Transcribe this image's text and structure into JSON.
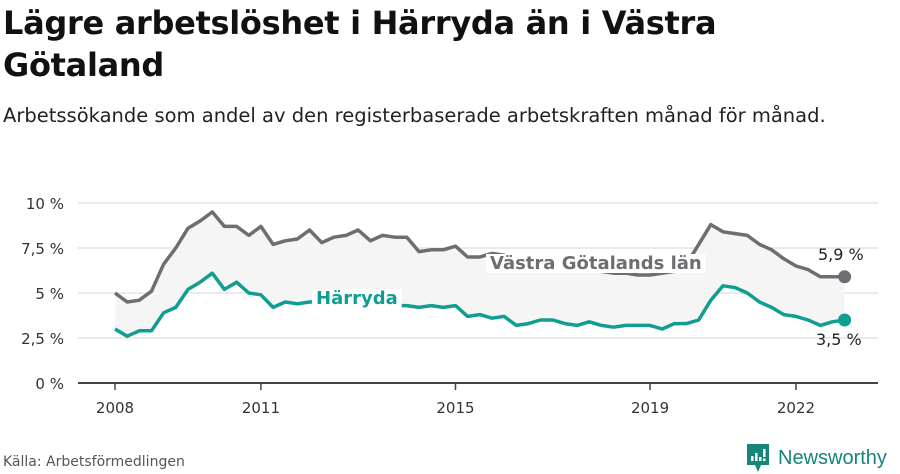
{
  "header": {
    "title": "Lägre arbetslöshet i Härryda än i Västra Götaland",
    "subtitle": "Arbetssökande som andel av den registerbaserade arbetskraften månad för månad."
  },
  "footer": {
    "source": "Källa: Arbetsförmedlingen",
    "brand": "Newsworthy"
  },
  "colors": {
    "vastra_gotaland": "#6e6d72",
    "harryda": "#0f9e91",
    "band": "#f5f5f5",
    "grid": "#e3e3e3",
    "axis": "#444444"
  },
  "chart_data": {
    "type": "line",
    "title": "Lägre arbetslöshet i Härryda än i Västra Götaland",
    "subtitle": "Arbetssökande som andel av den registerbaserade arbetskraften månad för månad.",
    "xlabel": "",
    "ylabel": "",
    "ylim": [
      0,
      10
    ],
    "yticks": [
      "0 %",
      "2,5 %",
      "5 %",
      "7,5 %",
      "10 %"
    ],
    "xticks": [
      "2008",
      "2011",
      "2015",
      "2019",
      "2022"
    ],
    "grid": true,
    "shaded_band_between_series": true,
    "x": [
      2008.0,
      2008.25,
      2008.5,
      2008.75,
      2009.0,
      2009.25,
      2009.5,
      2009.75,
      2010.0,
      2010.25,
      2010.5,
      2010.75,
      2011.0,
      2011.25,
      2011.5,
      2011.75,
      2012.0,
      2012.25,
      2012.5,
      2012.75,
      2013.0,
      2013.25,
      2013.5,
      2013.75,
      2014.0,
      2014.25,
      2014.5,
      2014.75,
      2015.0,
      2015.25,
      2015.5,
      2015.75,
      2016.0,
      2016.25,
      2016.5,
      2016.75,
      2017.0,
      2017.25,
      2017.5,
      2017.75,
      2018.0,
      2018.25,
      2018.5,
      2018.75,
      2019.0,
      2019.25,
      2019.5,
      2019.75,
      2020.0,
      2020.25,
      2020.5,
      2020.75,
      2021.0,
      2021.25,
      2021.5,
      2021.75,
      2022.0,
      2022.25,
      2022.5,
      2022.75,
      2023.0
    ],
    "series": [
      {
        "name": "Västra Götalands län",
        "end_label": "5,9 %",
        "values": [
          5.0,
          4.5,
          4.6,
          5.1,
          6.6,
          7.5,
          8.6,
          9.0,
          9.5,
          8.7,
          8.7,
          8.2,
          8.7,
          7.7,
          7.9,
          8.0,
          8.5,
          7.8,
          8.1,
          8.2,
          8.5,
          7.9,
          8.2,
          8.1,
          8.1,
          7.3,
          7.4,
          7.4,
          7.6,
          7.0,
          7.0,
          7.2,
          7.1,
          6.9,
          6.8,
          6.7,
          6.6,
          6.5,
          6.4,
          6.3,
          6.2,
          6.1,
          6.1,
          6.0,
          6.0,
          6.1,
          6.2,
          6.6,
          7.7,
          8.8,
          8.4,
          8.3,
          8.2,
          7.7,
          7.4,
          6.9,
          6.5,
          6.3,
          5.9,
          5.9,
          5.9
        ]
      },
      {
        "name": "Härryda",
        "end_label": "3,5 %",
        "values": [
          3.0,
          2.6,
          2.9,
          2.9,
          3.9,
          4.2,
          5.2,
          5.6,
          6.1,
          5.2,
          5.6,
          5.0,
          4.9,
          4.2,
          4.5,
          4.4,
          4.5,
          4.5,
          4.5,
          4.5,
          4.7,
          4.4,
          4.6,
          4.3,
          4.3,
          4.2,
          4.3,
          4.2,
          4.3,
          3.7,
          3.8,
          3.6,
          3.7,
          3.2,
          3.3,
          3.5,
          3.5,
          3.3,
          3.2,
          3.4,
          3.2,
          3.1,
          3.2,
          3.2,
          3.2,
          3.0,
          3.3,
          3.3,
          3.5,
          4.6,
          5.4,
          5.3,
          5.0,
          4.5,
          4.2,
          3.8,
          3.7,
          3.5,
          3.2,
          3.4,
          3.5
        ]
      }
    ]
  }
}
